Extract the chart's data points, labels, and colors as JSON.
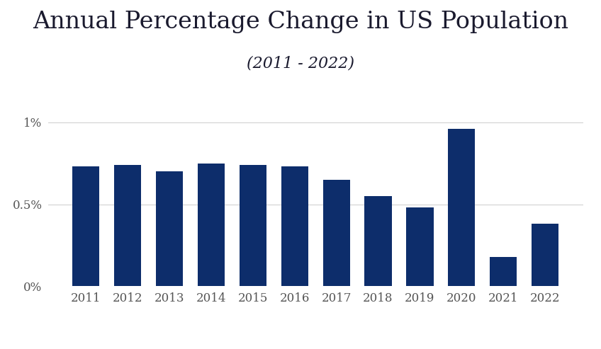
{
  "title_line1": "Annual Percentage Change in US Population",
  "title_line2": "(2011 - 2022)",
  "years": [
    2011,
    2012,
    2013,
    2014,
    2015,
    2016,
    2017,
    2018,
    2019,
    2020,
    2021,
    2022
  ],
  "values": [
    0.0073,
    0.0074,
    0.007,
    0.0075,
    0.0074,
    0.0073,
    0.0065,
    0.0055,
    0.0048,
    0.0096,
    0.0018,
    0.0038
  ],
  "bar_color": "#0d2d6b",
  "background_color": "#ffffff",
  "yticks": [
    0.0,
    0.005,
    0.01
  ],
  "ytick_labels": [
    "0%",
    "0.5%",
    "1%"
  ],
  "ylim": [
    0,
    0.0115
  ],
  "grid_color": "#cccccc",
  "title1_fontsize": 24,
  "title2_fontsize": 16,
  "tick_fontsize": 12,
  "xtick_fontsize": 12,
  "bar_width": 0.65,
  "title1_color": "#1a1a2e",
  "title2_color": "#1a1a2e",
  "tick_color": "#555555"
}
